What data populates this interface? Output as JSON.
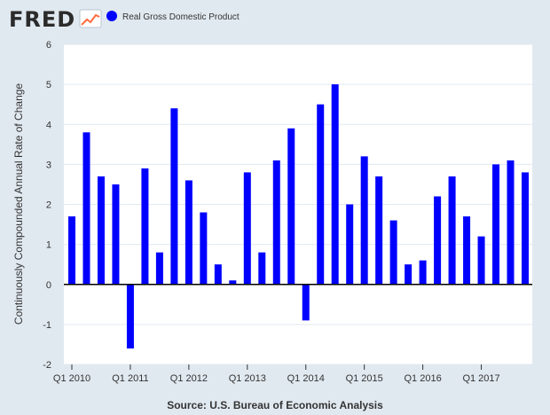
{
  "header": {
    "logo_text": "FRED",
    "legend_label": "Real Gross Domestic Product"
  },
  "footer": {
    "source": "Source: U.S. Bureau of Economic Analysis"
  },
  "colors": {
    "background": "#e1e9f0",
    "plot_background": "#ffffff",
    "bar": "#0000ff",
    "grid": "#e1e9f0",
    "text": "#333333",
    "logo": "#2b2b2b",
    "logo_accent": "#ff6b3d"
  },
  "chart_data": {
    "type": "bar",
    "title": "",
    "xlabel": "",
    "ylabel": "Continuously Compounded Annual Rate of Change",
    "ylim": [
      -2,
      6
    ],
    "yticks": [
      -2,
      -1,
      0,
      1,
      2,
      3,
      4,
      5,
      6
    ],
    "grid": true,
    "legend": "top-left",
    "x_tick_labels": [
      {
        "index": 0,
        "label": "Q1 2010"
      },
      {
        "index": 4,
        "label": "Q1 2011"
      },
      {
        "index": 8,
        "label": "Q1 2012"
      },
      {
        "index": 12,
        "label": "Q1 2013"
      },
      {
        "index": 16,
        "label": "Q1 2014"
      },
      {
        "index": 20,
        "label": "Q1 2015"
      },
      {
        "index": 24,
        "label": "Q1 2016"
      },
      {
        "index": 28,
        "label": "Q1 2017"
      }
    ],
    "categories": [
      "2010 Q1",
      "2010 Q2",
      "2010 Q3",
      "2010 Q4",
      "2011 Q1",
      "2011 Q2",
      "2011 Q3",
      "2011 Q4",
      "2012 Q1",
      "2012 Q2",
      "2012 Q3",
      "2012 Q4",
      "2013 Q1",
      "2013 Q2",
      "2013 Q3",
      "2013 Q4",
      "2014 Q1",
      "2014 Q2",
      "2014 Q3",
      "2014 Q4",
      "2015 Q1",
      "2015 Q2",
      "2015 Q3",
      "2015 Q4",
      "2016 Q1",
      "2016 Q2",
      "2016 Q3",
      "2016 Q4",
      "2017 Q1",
      "2017 Q2",
      "2017 Q3",
      "2017 Q4"
    ],
    "series": [
      {
        "name": "Real Gross Domestic Product",
        "values": [
          1.7,
          3.8,
          2.7,
          2.5,
          -1.6,
          2.9,
          0.8,
          4.4,
          2.6,
          1.8,
          0.5,
          0.1,
          2.8,
          0.8,
          3.1,
          3.9,
          -0.9,
          4.5,
          5.0,
          2.0,
          3.2,
          2.7,
          1.6,
          0.5,
          0.6,
          2.2,
          2.7,
          1.7,
          1.2,
          3.0,
          3.1,
          2.8
        ]
      }
    ]
  }
}
